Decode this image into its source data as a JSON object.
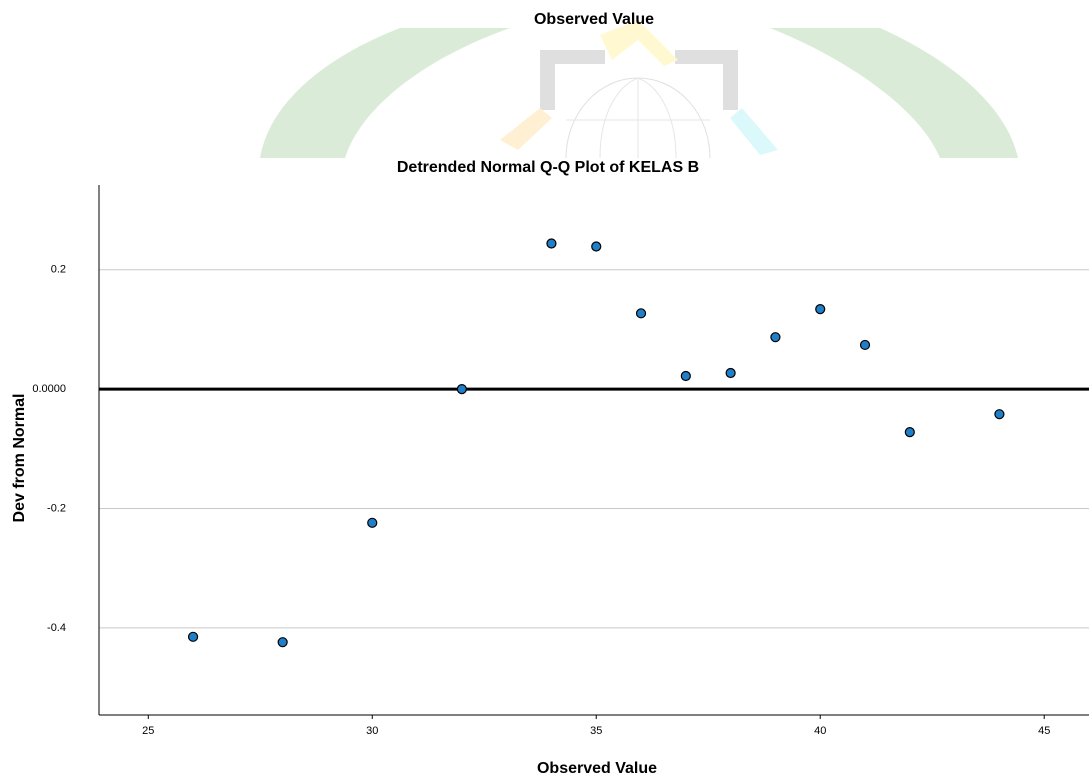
{
  "fragment_label": "Observed Value",
  "chart_data": {
    "type": "scatter",
    "title": "Detrended Normal Q-Q Plot of KELAS B",
    "x_label": "Observed Value",
    "y_label": "Dev from Normal",
    "x": [
      26,
      28,
      30,
      32,
      34,
      35,
      36,
      37,
      38,
      39,
      40,
      41,
      42,
      44
    ],
    "values": [
      -0.415,
      -0.424,
      -0.224,
      0.0,
      0.244,
      0.239,
      0.127,
      0.022,
      0.027,
      0.087,
      0.134,
      0.074,
      -0.072,
      -0.042
    ],
    "color": "#1f7fc8",
    "xlim": [
      23.9,
      46.0
    ],
    "ylim": [
      -0.546,
      0.342
    ],
    "xticks": [
      25,
      30,
      35,
      40,
      45
    ],
    "yticks": [
      -0.4,
      -0.2,
      {
        "value": 0,
        "label": "0.0000"
      },
      0.2
    ],
    "reference_y": 0,
    "grid": true
  }
}
